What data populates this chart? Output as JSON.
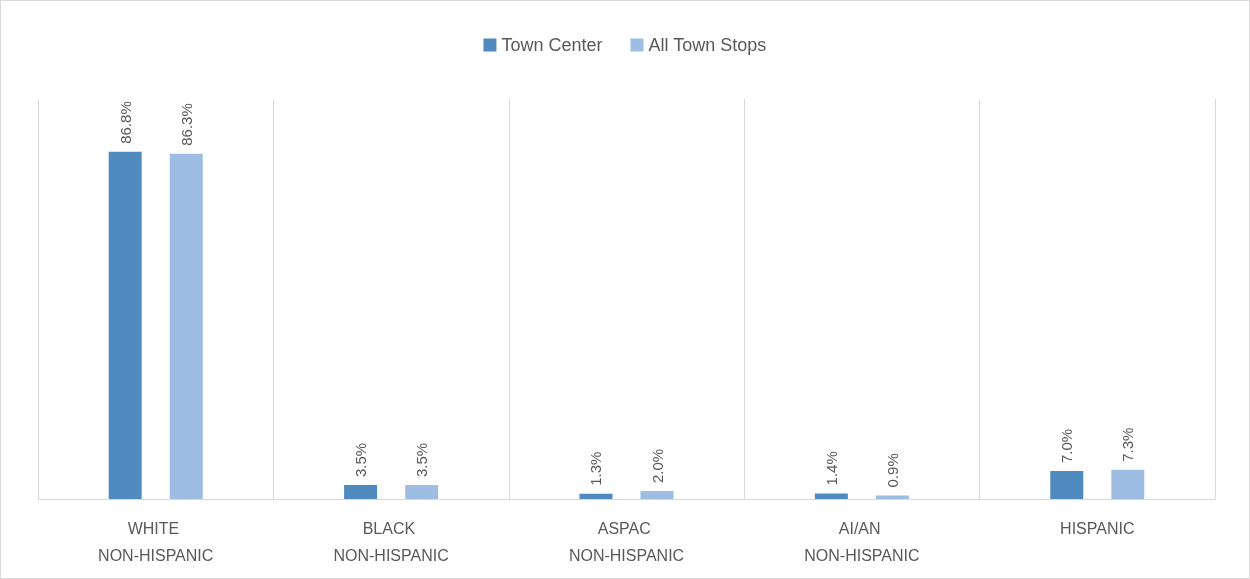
{
  "chart_data": {
    "type": "bar",
    "categories": [
      "WHITE NON-HISPANIC",
      "BLACK NON-HISPANIC",
      "ASPAC NON-HISPANIC",
      "AI/AN NON-HISPANIC",
      "HISPANIC"
    ],
    "series": [
      {
        "name": "Town Center",
        "color": "#4f8bbf",
        "values": [
          86.8,
          3.5,
          1.3,
          1.4,
          7.0
        ],
        "value_labels": [
          "86.8%",
          "3.5%",
          "1.3%",
          "1.4%",
          "7.0%"
        ]
      },
      {
        "name": "All Town Stops",
        "color": "#9dbde2",
        "values": [
          86.3,
          3.5,
          2.0,
          0.9,
          7.3
        ],
        "value_labels": [
          "86.3%",
          "3.5%",
          "2.0%",
          "0.9%",
          "7.3%"
        ]
      }
    ],
    "ylim": [
      0,
      100
    ],
    "tick_labels": "x",
    "grid": "x",
    "legend": "top"
  }
}
